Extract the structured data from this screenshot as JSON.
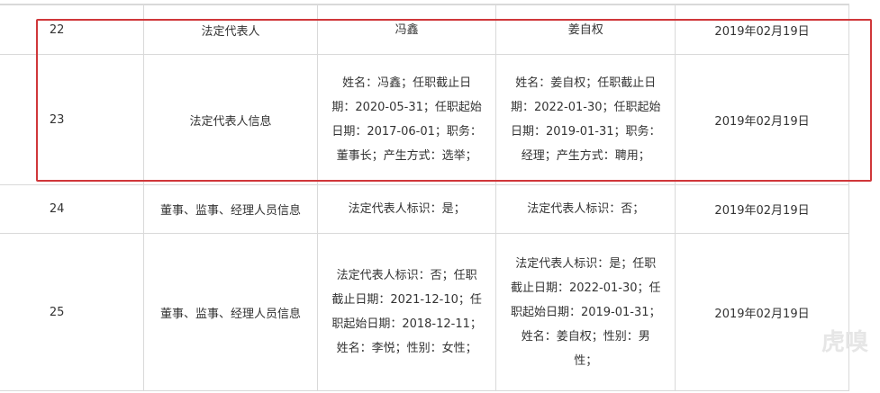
{
  "rows": [
    {
      "no": "22",
      "item": "法定代表人",
      "before": [
        "冯鑫"
      ],
      "after": [
        "姜自权"
      ],
      "date": "2019年02月19日"
    },
    {
      "no": "23",
      "item": "法定代表人信息",
      "before": [
        "姓名：冯鑫；任职截止日",
        "期：2020-05-31；任职起始",
        "日期：2017-06-01；职务：",
        "董事长；产生方式：选举；"
      ],
      "after": [
        "姓名：姜自权；任职截止日",
        "期：2022-01-30；任职起始",
        "日期：2019-01-31；职务：",
        "经理；产生方式：聘用；"
      ],
      "date": "2019年02月19日"
    },
    {
      "no": "24",
      "item": "董事、监事、经理人员信息",
      "before": [
        "法定代表人标识：是；"
      ],
      "after": [
        "法定代表人标识：否；"
      ],
      "date": "2019年02月19日"
    },
    {
      "no": "25",
      "item": "董事、监事、经理人员信息",
      "before": [
        "法定代表人标识：否；任职",
        "截止日期：2021-12-10；任",
        "职起始日期：2018-12-11；",
        "姓名：李悦；性别：女性；"
      ],
      "after": [
        "法定代表人标识：是；任职",
        "截止日期：2022-01-30；任",
        "职起始日期：2019-01-31；",
        "姓名：姜自权；性别：男",
        "性；"
      ],
      "date": "2019年02月19日"
    }
  ],
  "highlight_color": "#d0373a",
  "watermark": "虎嗅"
}
